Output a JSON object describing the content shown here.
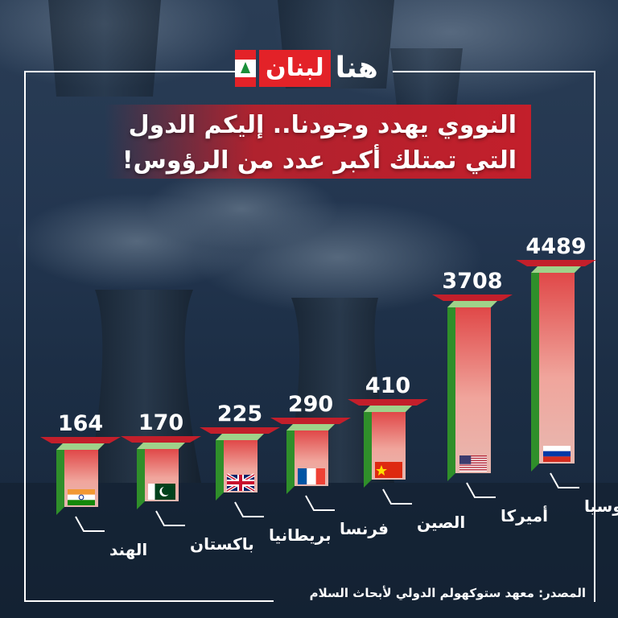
{
  "logo": {
    "red_part": "لبنان",
    "white_part": "هنا"
  },
  "title": {
    "line1": "النووي يهدد وجودنا.. إليكم الدول",
    "line2": "التي تمتلك أكبر عدد من الرؤوس!"
  },
  "source": "المصدر: معهد ستوكهولم الدولي لأبحاث السلام",
  "colors": {
    "bar_green": "#2f8f2a",
    "bar_pink": "#e8b8b0",
    "bar_red": "#e04848",
    "title_band": "#c31f2b",
    "label_underline": "#c31f2b"
  },
  "chart_data": {
    "type": "bar",
    "categories": [
      "الهند",
      "باكستان",
      "بريطانيا",
      "فرنسا",
      "الصين",
      "أميركا",
      "روسيا"
    ],
    "values": [
      164,
      170,
      225,
      290,
      410,
      3708,
      4489
    ],
    "value_labels": [
      "164",
      "170",
      "225",
      "290",
      "410",
      "3708",
      "4489"
    ],
    "flags": [
      "india-flag-icon",
      "pakistan-flag-icon",
      "uk-flag-icon",
      "france-flag-icon",
      "china-flag-icon",
      "usa-flag-icon",
      "russia-flag-icon"
    ],
    "title": "",
    "xlabel": "",
    "ylabel": "",
    "grid": false,
    "legend": "none"
  }
}
